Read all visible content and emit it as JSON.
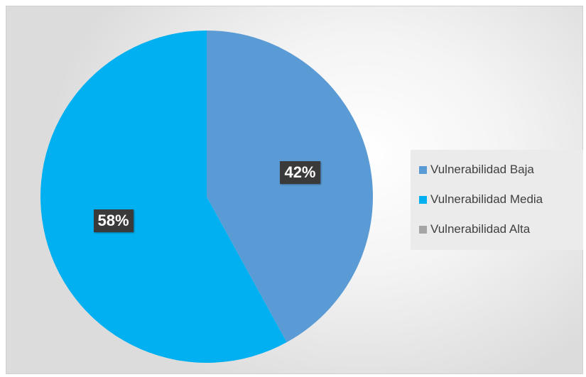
{
  "chart_data": {
    "type": "pie",
    "categories": [
      "Vulnerabilidad Baja",
      "Vulnerabilidad Media",
      "Vulnerabilidad Alta"
    ],
    "values": [
      42,
      58,
      0
    ],
    "labels": [
      "42%",
      "58%",
      ""
    ],
    "colors": [
      "#5b9bd5",
      "#00b0f0",
      "#a5a5a5"
    ],
    "start_angle_deg": 0,
    "direction": "clockwise",
    "legend_position": "right"
  }
}
